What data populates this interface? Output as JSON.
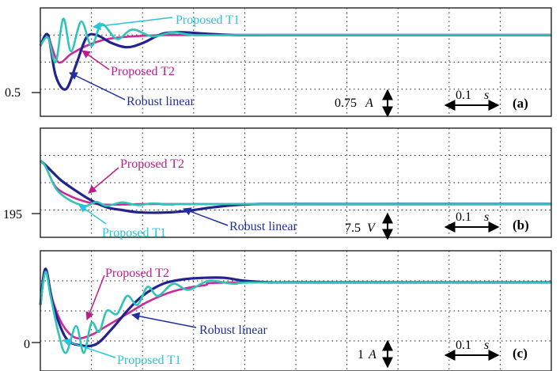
{
  "colors": {
    "proposed_t1": "#2ec4b6",
    "proposed_t1_label": "#26c6da",
    "proposed_t2": "#cc2a9a",
    "proposed_t2_label": "#c0198c",
    "robust_linear": "#23238e",
    "robust_linear_label": "#1f2f9e",
    "grid": "#222222",
    "text": "#000000"
  },
  "chart_data": [
    {
      "type": "line",
      "panel_label": "(a)",
      "y_marker_label": "0.5",
      "scale": {
        "value": "0.75",
        "unit": "A"
      },
      "time_scale": {
        "value": "0.1",
        "unit": "s"
      },
      "x_divisions": 10,
      "y_divisions": 4,
      "grid": true,
      "series": [
        {
          "name": "Proposed T1",
          "x": [
            0,
            0.15,
            0.3,
            0.45,
            0.6,
            0.8,
            1,
            1.2,
            1.5,
            1.8,
            2.2,
            2.6,
            3,
            4,
            5,
            10
          ],
          "y": [
            2.6,
            2.9,
            2.0,
            3.6,
            2.4,
            3.5,
            2.6,
            3.4,
            2.85,
            3.2,
            2.95,
            3.1,
            3.0,
            3.0,
            3.0,
            3.0
          ]
        },
        {
          "name": "Proposed T2",
          "x": [
            0,
            0.15,
            0.35,
            0.6,
            0.9,
            1.2,
            1.5,
            2,
            2.5,
            3,
            10
          ],
          "y": [
            2.6,
            2.9,
            2.0,
            2.3,
            2.6,
            2.8,
            2.9,
            2.97,
            3.0,
            3.0,
            3.0
          ]
        },
        {
          "name": "Robust linear",
          "x": [
            0,
            0.15,
            0.3,
            0.5,
            0.7,
            0.9,
            1.1,
            1.4,
            1.7,
            2.0,
            2.4,
            2.8,
            3.2,
            3.8,
            4.5,
            10
          ],
          "y": [
            2.6,
            3.0,
            1.5,
            1.0,
            1.9,
            2.9,
            3.0,
            2.7,
            2.55,
            2.7,
            3.05,
            3.1,
            3.05,
            3.0,
            3.0,
            3.0
          ]
        }
      ],
      "annotations": [
        "Proposed T1",
        "Proposed T2",
        "Robust linear"
      ]
    },
    {
      "type": "line",
      "panel_label": "(b)",
      "y_marker_label": "195",
      "scale": {
        "value": "7.5",
        "unit": "V"
      },
      "time_scale": {
        "value": "0.1",
        "unit": "s"
      },
      "x_divisions": 10,
      "y_divisions": 4,
      "grid": true,
      "series": [
        {
          "name": "Proposed T1",
          "x": [
            0,
            0.1,
            0.3,
            0.5,
            0.7,
            0.9,
            1.1,
            1.3,
            1.6,
            1.9,
            2.2,
            2.6,
            3,
            10
          ],
          "y": [
            2.8,
            2.6,
            1.8,
            1.45,
            1.25,
            1.15,
            1.3,
            1.15,
            1.28,
            1.18,
            1.24,
            1.2,
            1.22,
            1.22
          ]
        },
        {
          "name": "Proposed T2",
          "x": [
            0,
            0.1,
            0.3,
            0.6,
            0.9,
            1.2,
            1.6,
            2.0,
            2.5,
            3,
            10
          ],
          "y": [
            2.8,
            2.6,
            1.85,
            1.5,
            1.3,
            1.2,
            1.2,
            1.22,
            1.22,
            1.22,
            1.22
          ]
        },
        {
          "name": "Robust linear",
          "x": [
            0,
            0.1,
            0.4,
            0.7,
            1.0,
            1.3,
            1.6,
            1.9,
            2.3,
            2.8,
            3.3,
            3.8,
            4.3,
            5,
            10
          ],
          "y": [
            2.8,
            2.65,
            2.1,
            1.7,
            1.35,
            1.1,
            1.0,
            0.92,
            0.9,
            0.95,
            1.08,
            1.18,
            1.22,
            1.22,
            1.22
          ]
        }
      ],
      "annotations": [
        "Proposed T2",
        "Proposed T1",
        "Robust linear"
      ]
    },
    {
      "type": "line",
      "panel_label": "(c)",
      "y_marker_label": "0",
      "scale": {
        "value": "1",
        "unit": "A"
      },
      "time_scale": {
        "value": "0.1",
        "unit": "s"
      },
      "x_divisions": 10,
      "y_divisions": 4,
      "grid": true,
      "series": [
        {
          "name": "Proposed T1",
          "x": [
            0,
            0.1,
            0.2,
            0.35,
            0.5,
            0.7,
            0.85,
            1.0,
            1.15,
            1.3,
            1.5,
            1.7,
            1.9,
            2.1,
            2.3,
            2.6,
            2.9,
            3.3,
            3.8,
            4.5,
            10
          ],
          "y": [
            2.2,
            3.3,
            2.5,
            1.3,
            0.6,
            1.5,
            0.6,
            1.6,
            1.3,
            2.0,
            1.9,
            2.5,
            2.2,
            2.8,
            2.5,
            2.9,
            2.7,
            3.0,
            2.9,
            2.95,
            2.95
          ]
        },
        {
          "name": "Proposed T2",
          "x": [
            0,
            0.1,
            0.25,
            0.45,
            0.7,
            1.0,
            1.3,
            1.7,
            2.1,
            2.6,
            3.2,
            4,
            10
          ],
          "y": [
            2.2,
            3.3,
            2.3,
            1.5,
            1.1,
            1.2,
            1.5,
            1.9,
            2.3,
            2.65,
            2.85,
            2.95,
            2.95
          ]
        },
        {
          "name": "Robust linear",
          "x": [
            0,
            0.1,
            0.25,
            0.5,
            0.8,
            1.1,
            1.4,
            1.7,
            2.0,
            2.4,
            2.8,
            3.2,
            3.6,
            4.0,
            4.5,
            5.0,
            10
          ],
          "y": [
            2.2,
            3.4,
            2.2,
            1.1,
            0.85,
            0.9,
            1.4,
            2.0,
            2.5,
            2.9,
            3.05,
            3.1,
            3.1,
            3.0,
            2.95,
            2.95,
            2.95
          ]
        }
      ],
      "annotations": [
        "Proposed T2",
        "Robust linear",
        "Proposed T1"
      ]
    }
  ]
}
